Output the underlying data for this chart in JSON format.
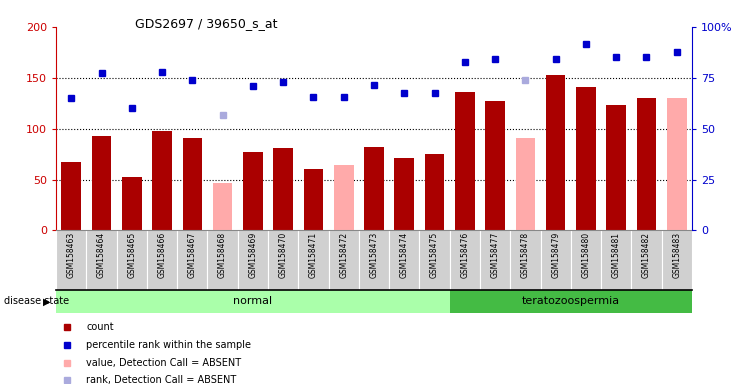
{
  "title": "GDS2697 / 39650_s_at",
  "samples": [
    "GSM158463",
    "GSM158464",
    "GSM158465",
    "GSM158466",
    "GSM158467",
    "GSM158468",
    "GSM158469",
    "GSM158470",
    "GSM158471",
    "GSM158472",
    "GSM158473",
    "GSM158474",
    "GSM158475",
    "GSM158476",
    "GSM158477",
    "GSM158478",
    "GSM158479",
    "GSM158480",
    "GSM158481",
    "GSM158482",
    "GSM158483"
  ],
  "disease_state": [
    "normal",
    "normal",
    "normal",
    "normal",
    "normal",
    "normal",
    "normal",
    "normal",
    "normal",
    "normal",
    "normal",
    "normal",
    "normal",
    "teratozoospermia",
    "teratozoospermia",
    "teratozoospermia",
    "teratozoospermia",
    "teratozoospermia",
    "teratozoospermia",
    "teratozoospermia",
    "teratozoospermia"
  ],
  "count_values": [
    67,
    93,
    52,
    98,
    91,
    null,
    77,
    81,
    60,
    null,
    82,
    71,
    75,
    136,
    127,
    null,
    153,
    141,
    123,
    130,
    null
  ],
  "count_absent": [
    null,
    null,
    null,
    null,
    null,
    47,
    null,
    null,
    null,
    64,
    null,
    null,
    null,
    null,
    null,
    91,
    null,
    null,
    null,
    null,
    130
  ],
  "rank_values": [
    130,
    155,
    120,
    156,
    148,
    null,
    142,
    146,
    131,
    131,
    143,
    135,
    135,
    165,
    168,
    null,
    168,
    183,
    170,
    170,
    175
  ],
  "rank_absent": [
    null,
    null,
    null,
    null,
    null,
    113,
    null,
    null,
    null,
    null,
    null,
    null,
    null,
    null,
    null,
    148,
    null,
    null,
    null,
    null,
    null
  ],
  "bar_color_present": "#aa0000",
  "bar_color_absent": "#ffaaaa",
  "dot_color_present": "#0000cc",
  "dot_color_absent": "#aaaadd",
  "ylim": [
    0,
    200
  ],
  "yticks_left": [
    0,
    50,
    100,
    150,
    200
  ],
  "yticks_right": [
    0,
    25,
    50,
    75,
    100
  ],
  "yticklabels_left": [
    "0",
    "50",
    "100",
    "150",
    "200"
  ],
  "yticklabels_right": [
    "0",
    "25",
    "50",
    "75",
    "100%"
  ],
  "normal_label": "normal",
  "terato_label": "teratozoospermia",
  "disease_state_label": "disease state",
  "legend_items": [
    "count",
    "percentile rank within the sample",
    "value, Detection Call = ABSENT",
    "rank, Detection Call = ABSENT"
  ],
  "legend_colors": [
    "#aa0000",
    "#0000cc",
    "#ffaaaa",
    "#aaaadd"
  ],
  "normal_color": "#aaffaa",
  "terato_color": "#44bb44",
  "plot_bg": "#ffffff"
}
